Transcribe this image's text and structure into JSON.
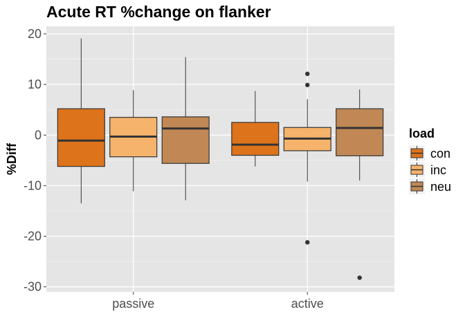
{
  "chart_data": {
    "type": "box",
    "title": "Acute RT %change on flanker",
    "xlabel": "",
    "ylabel": "%Diff",
    "categories": [
      "passive",
      "active"
    ],
    "ylim": [
      -31,
      21.5
    ],
    "yticks": [
      20,
      10,
      0,
      -10,
      -20,
      -30
    ],
    "ytick_labels": [
      "20",
      "10",
      "0",
      "-10",
      "-20",
      "-30"
    ],
    "grid": true,
    "legend": {
      "title": "load",
      "position": "right"
    },
    "series": [
      {
        "name": "con",
        "color": "#DD731A",
        "boxes": [
          {
            "category": "passive",
            "whisker_low": -13.5,
            "q1": -6.2,
            "median": -1.1,
            "q3": 5.2,
            "whisker_high": 19.1,
            "outliers": []
          },
          {
            "category": "active",
            "whisker_low": -6.2,
            "q1": -4.0,
            "median": -1.9,
            "q3": 2.5,
            "whisker_high": 8.7,
            "outliers": []
          }
        ]
      },
      {
        "name": "inc",
        "color": "#F5B36B",
        "boxes": [
          {
            "category": "passive",
            "whisker_low": -11.1,
            "q1": -4.3,
            "median": -0.3,
            "q3": 3.5,
            "whisker_high": 8.9,
            "outliers": []
          },
          {
            "category": "active",
            "whisker_low": -9.2,
            "q1": -3.1,
            "median": -0.7,
            "q3": 1.5,
            "whisker_high": 7.1,
            "outliers": [
              12.1,
              9.9,
              -21.2
            ]
          }
        ]
      },
      {
        "name": "neu",
        "color": "#C18855",
        "boxes": [
          {
            "category": "passive",
            "whisker_low": -12.9,
            "q1": -5.6,
            "median": 1.3,
            "q3": 3.6,
            "whisker_high": 15.4,
            "outliers": []
          },
          {
            "category": "active",
            "whisker_low": -9.0,
            "q1": -4.1,
            "median": 1.4,
            "q3": 5.2,
            "whisker_high": 9.0,
            "outliers": [
              -28.2
            ]
          }
        ]
      }
    ]
  }
}
